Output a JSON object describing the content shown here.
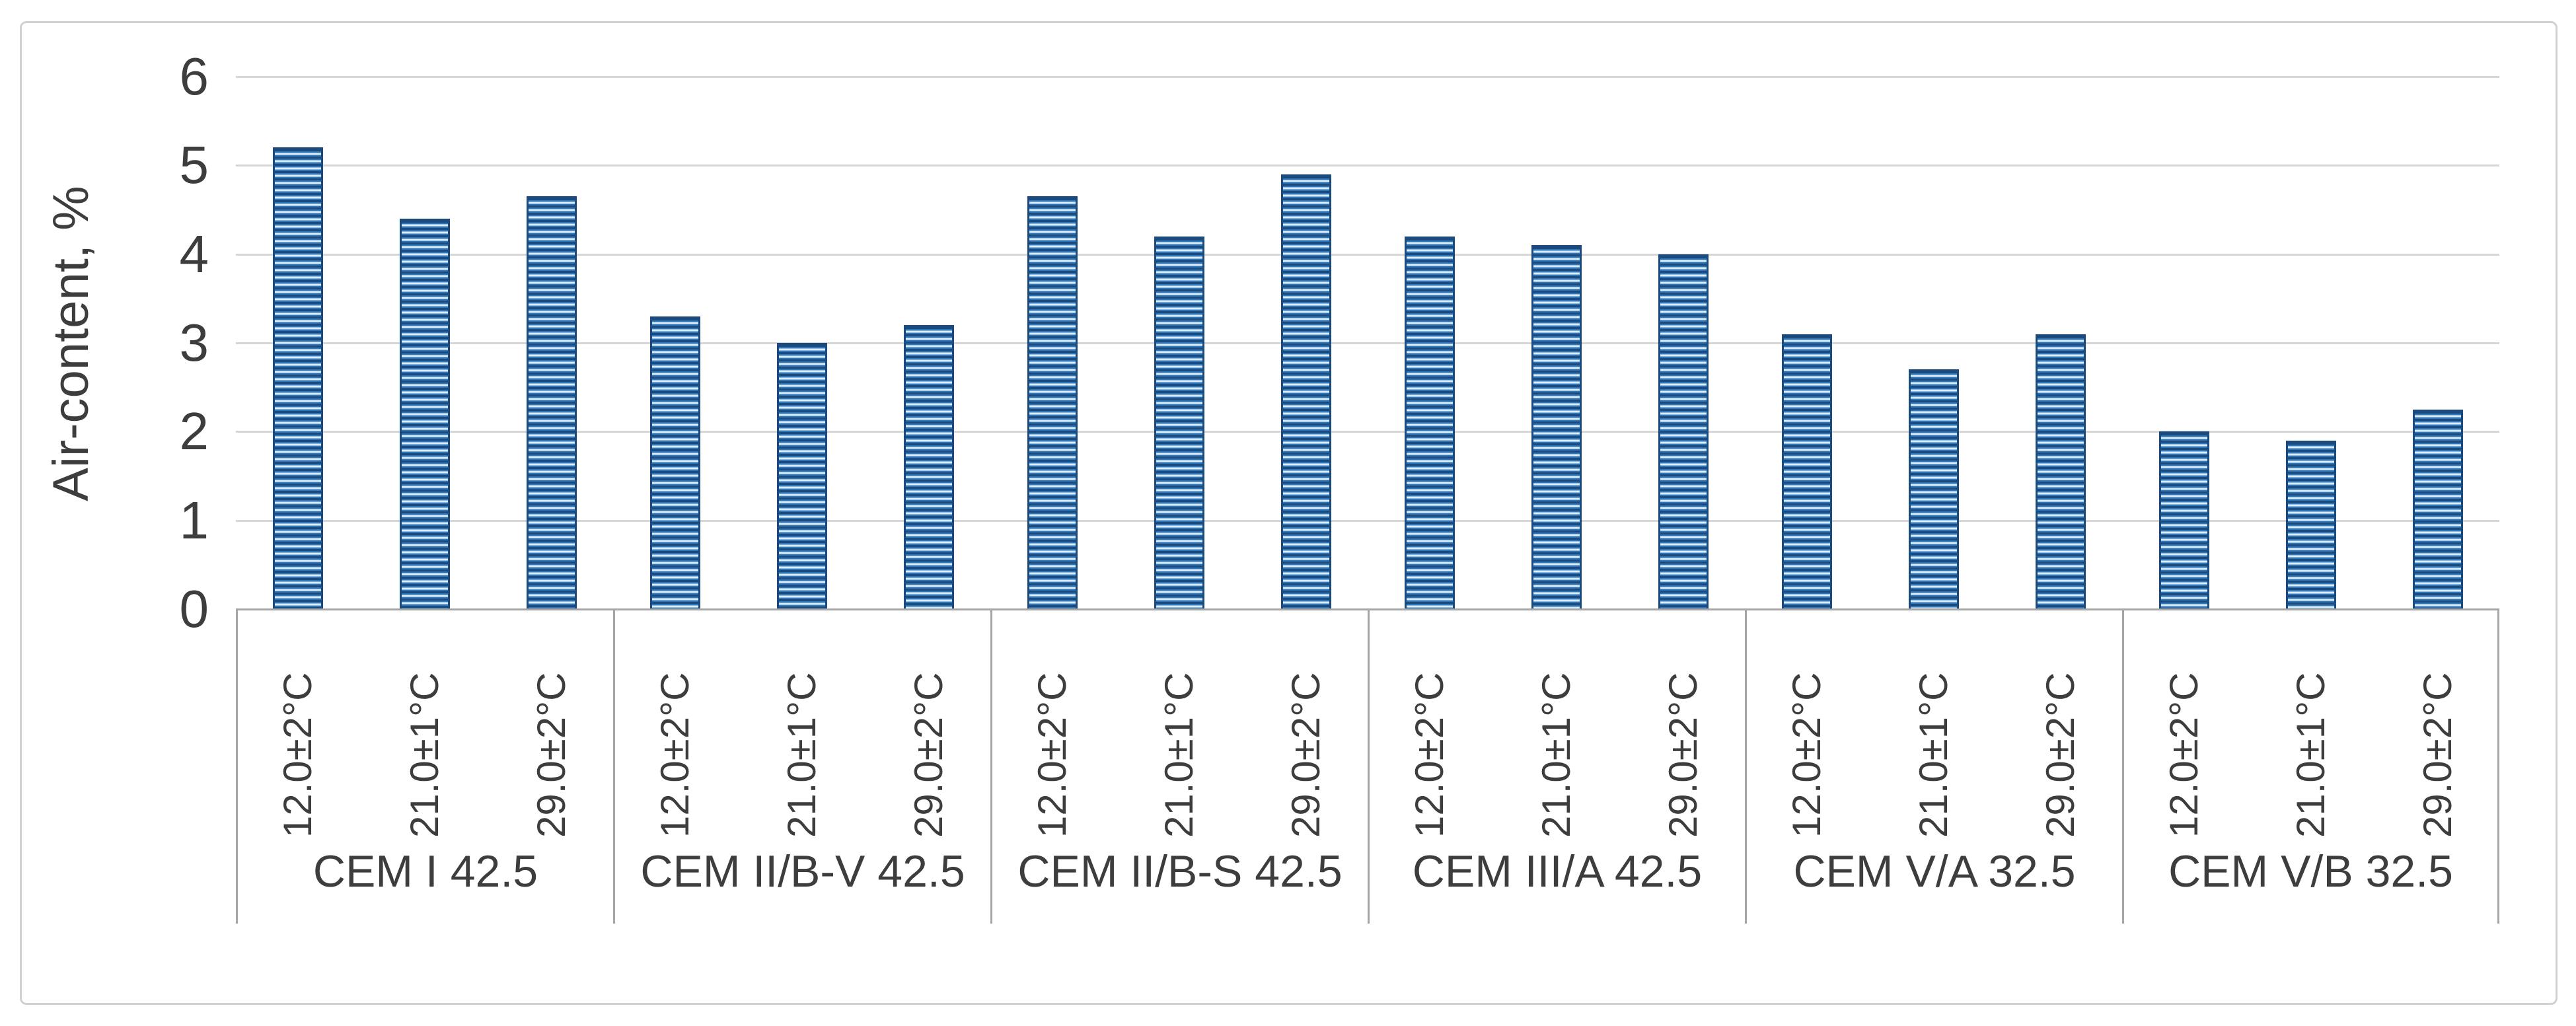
{
  "figure": {
    "background": "#ffffff",
    "border_color": "#d2d0d0"
  },
  "chart_data": {
    "type": "bar",
    "title": "",
    "xlabel": "",
    "ylabel": "Air-content, %",
    "ylim": [
      0,
      6
    ],
    "yticks": [
      "0",
      "1",
      "2",
      "3",
      "4",
      "5",
      "6"
    ],
    "grid": true,
    "legend_position": "none",
    "series_name": "Air content",
    "temperature_labels": [
      "12.0±2°C",
      "21.0±1°C",
      "29.0±2°C"
    ],
    "groups": [
      {
        "label": "CEM I 42.5",
        "values": [
          5.2,
          4.4,
          4.65
        ]
      },
      {
        "label": "CEM II/B-V 42.5",
        "values": [
          3.3,
          3.0,
          3.2
        ]
      },
      {
        "label": "CEM II/B-S 42.5",
        "values": [
          4.65,
          4.2,
          4.9
        ]
      },
      {
        "label": "CEM III/A 42.5",
        "values": [
          4.2,
          4.1,
          4.0
        ]
      },
      {
        "label": "CEM V/A 32.5",
        "values": [
          3.1,
          2.7,
          3.1
        ]
      },
      {
        "label": "CEM V/B 32.5",
        "values": [
          2.0,
          1.9,
          2.25
        ]
      }
    ]
  },
  "style": {
    "grid_color": "#d6d6d6",
    "axis_line_color": "#a6a6a6",
    "text_color": "#3d3d3d",
    "bar_dark": "#1b4b7e",
    "bar_mid": "#2f74b5",
    "bar_light": "#8cbade",
    "bar_lightest": "#ddecf8"
  }
}
